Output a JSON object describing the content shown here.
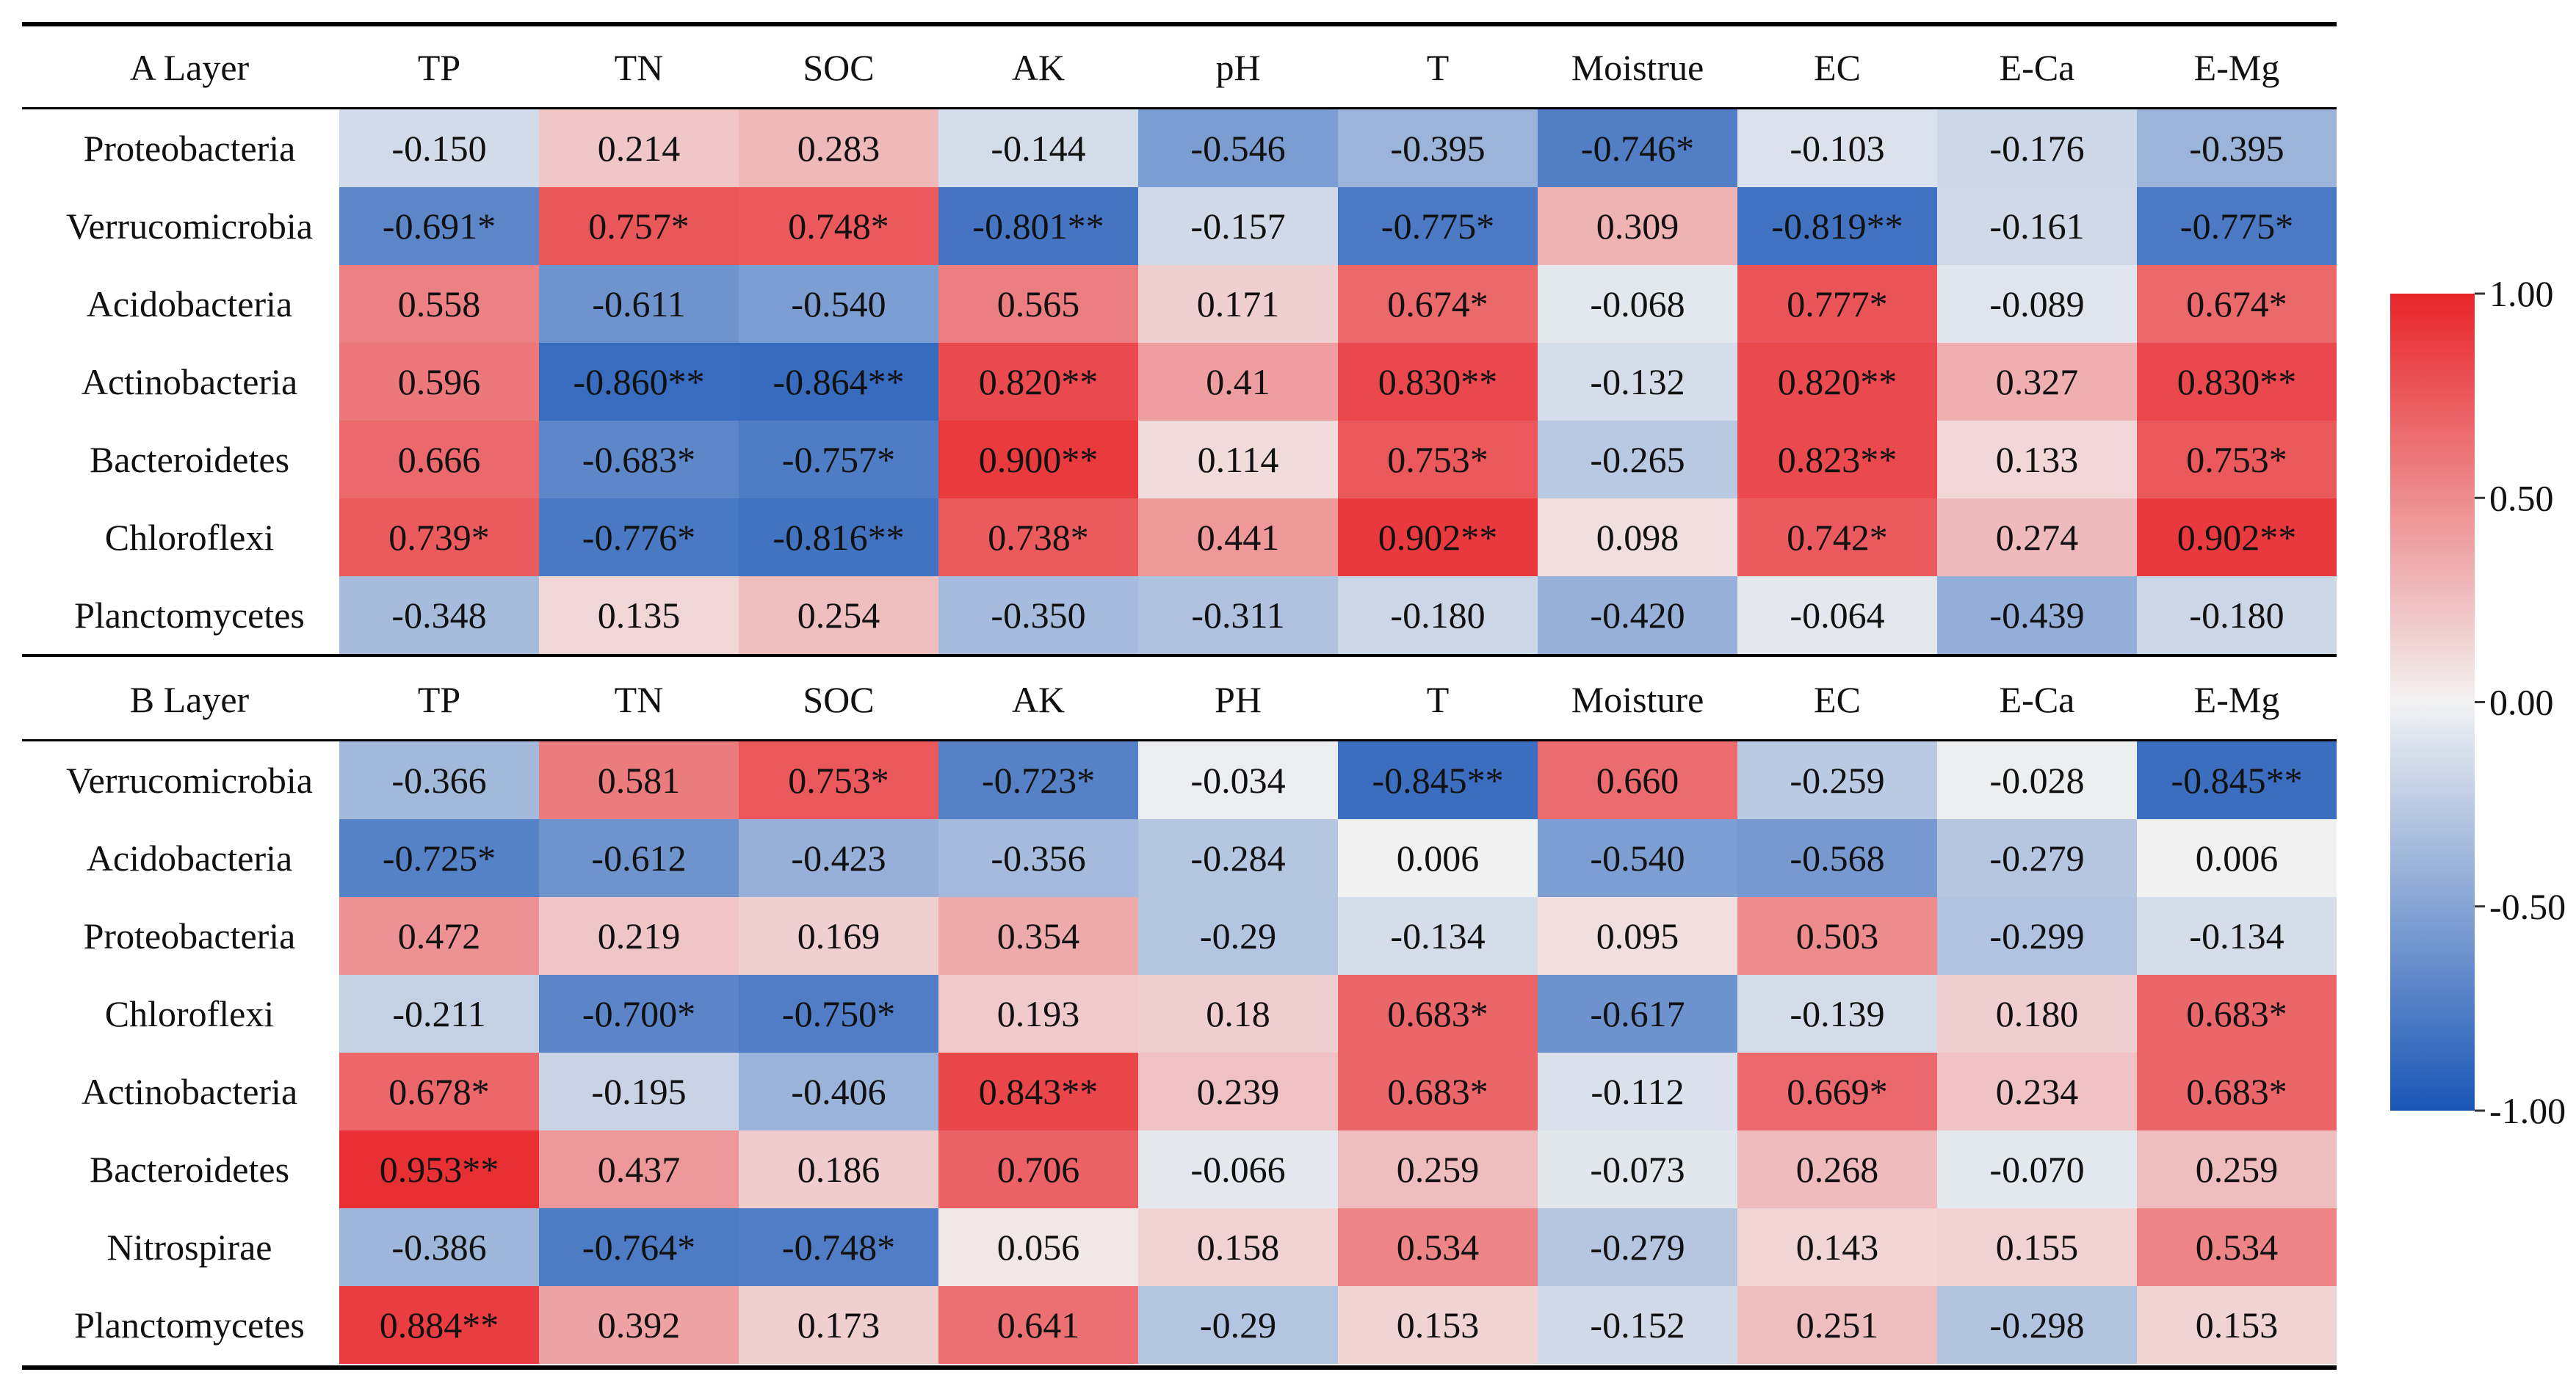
{
  "chart_data": [
    {
      "type": "heatmap",
      "title": "A Layer",
      "columns": [
        "TP",
        "TN",
        "SOC",
        "AK",
        "pH",
        "T",
        "Moistrue",
        "EC",
        "E-Ca",
        "E-Mg"
      ],
      "rows": [
        "Proteobacteria",
        "Verrucomicrobia",
        "Acidobacteria",
        "Actinobacteria",
        "Bacteroidetes",
        "Chloroflexi",
        "Planctomycetes"
      ],
      "labels": [
        [
          "-0.150",
          "0.214",
          "0.283",
          "-0.144",
          "-0.546",
          "-0.395",
          "-0.746*",
          "-0.103",
          "-0.176",
          "-0.395"
        ],
        [
          "-0.691*",
          "0.757*",
          "0.748*",
          "-0.801**",
          "-0.157",
          "-0.775*",
          "0.309",
          "-0.819**",
          "-0.161",
          "-0.775*"
        ],
        [
          "0.558",
          "-0.611",
          "-0.540",
          "0.565",
          "0.171",
          "0.674*",
          "-0.068",
          "0.777*",
          "-0.089",
          "0.674*"
        ],
        [
          "0.596",
          "-0.860**",
          "-0.864**",
          "0.820**",
          "0.41",
          "0.830**",
          "-0.132",
          "0.820**",
          "0.327",
          "0.830**"
        ],
        [
          "0.666",
          "-0.683*",
          "-0.757*",
          "0.900**",
          "0.114",
          "0.753*",
          "-0.265",
          "0.823**",
          "0.133",
          "0.753*"
        ],
        [
          "0.739*",
          "-0.776*",
          "-0.816**",
          "0.738*",
          "0.441",
          "0.902**",
          "0.098",
          "0.742*",
          "0.274",
          "0.902**"
        ],
        [
          "-0.348",
          "0.135",
          "0.254",
          "-0.350",
          "-0.311",
          "-0.180",
          "-0.420",
          "-0.064",
          "-0.439",
          "-0.180"
        ]
      ]
    },
    {
      "type": "heatmap",
      "title": "B Layer",
      "columns": [
        "TP",
        "TN",
        "SOC",
        "AK",
        "PH",
        "T",
        "Moisture",
        "EC",
        "E-Ca",
        "E-Mg"
      ],
      "rows": [
        "Verrucomicrobia",
        "Acidobacteria",
        "Proteobacteria",
        "Chloroflexi",
        "Actinobacteria",
        "Bacteroidetes",
        "Nitrospirae",
        "Planctomycetes"
      ],
      "labels": [
        [
          "-0.366",
          "0.581",
          "0.753*",
          "-0.723*",
          "-0.034",
          "-0.845**",
          "0.660",
          "-0.259",
          "-0.028",
          "-0.845**"
        ],
        [
          "-0.725*",
          "-0.612",
          "-0.423",
          "-0.356",
          "-0.284",
          "0.006",
          "-0.540",
          "-0.568",
          "-0.279",
          "0.006"
        ],
        [
          "0.472",
          "0.219",
          "0.169",
          "0.354",
          "-0.29",
          "-0.134",
          "0.095",
          "0.503",
          "-0.299",
          "-0.134"
        ],
        [
          "-0.211",
          "-0.700*",
          "-0.750*",
          "0.193",
          "0.18",
          "0.683*",
          "-0.617",
          "-0.139",
          "0.180",
          "0.683*"
        ],
        [
          "0.678*",
          "-0.195",
          "-0.406",
          "0.843**",
          "0.239",
          "0.683*",
          "-0.112",
          "0.669*",
          "0.234",
          "0.683*"
        ],
        [
          "0.953**",
          "0.437",
          "0.186",
          "0.706",
          "-0.066",
          "0.259",
          "-0.073",
          "0.268",
          "-0.070",
          "0.259"
        ],
        [
          "-0.386",
          "-0.764*",
          "-0.748*",
          "0.056",
          "0.158",
          "0.534",
          "-0.279",
          "0.143",
          "0.155",
          "0.534"
        ],
        [
          "0.884**",
          "0.392",
          "0.173",
          "0.641",
          "-0.29",
          "0.153",
          "-0.152",
          "0.251",
          "-0.298",
          "0.153"
        ]
      ]
    }
  ],
  "colorbar": {
    "range": [
      -1.0,
      1.0
    ],
    "ticks": [
      "1.00",
      "0.50",
      "0.00",
      "-0.50",
      "-1.00"
    ],
    "tick_values": [
      1.0,
      0.5,
      0.0,
      -0.5,
      -1.0
    ],
    "colors": {
      "high": "#e8252a",
      "mid": "#f2f2f2",
      "low": "#1a56b6"
    }
  }
}
